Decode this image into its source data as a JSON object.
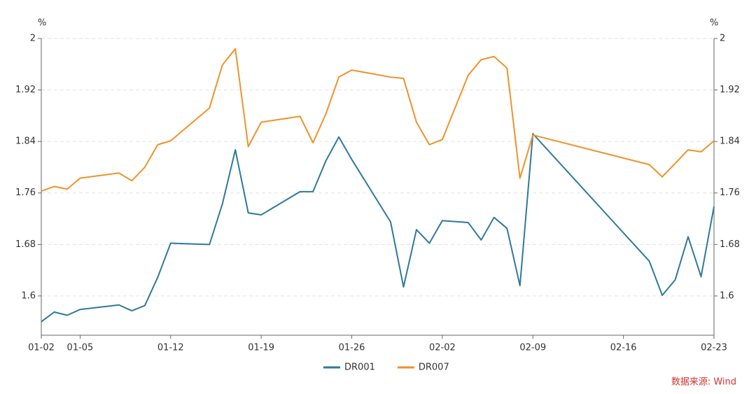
{
  "chart_data": {
    "type": "line",
    "y_label": "%",
    "y2_label": "%",
    "x": [
      "01-02",
      "01-03",
      "01-04",
      "01-05",
      "01-08",
      "01-09",
      "01-10",
      "01-11",
      "01-12",
      "01-15",
      "01-16",
      "01-17",
      "01-18",
      "01-19",
      "01-22",
      "01-23",
      "01-24",
      "01-25",
      "01-26",
      "01-29",
      "01-30",
      "01-31",
      "02-01",
      "02-02",
      "02-04",
      "02-05",
      "02-06",
      "02-07",
      "02-08",
      "02-09",
      "02-18",
      "02-19",
      "02-20",
      "02-21",
      "02-22",
      "02-23"
    ],
    "series": [
      {
        "name": "DR001",
        "color": "#2e7a9a",
        "values": [
          1.56,
          1.575,
          1.57,
          1.579,
          1.586,
          1.577,
          1.585,
          1.629,
          1.682,
          1.68,
          1.743,
          1.827,
          1.729,
          1.726,
          1.762,
          1.762,
          1.81,
          1.847,
          1.812,
          1.715,
          1.614,
          1.703,
          1.682,
          1.717,
          1.714,
          1.687,
          1.722,
          1.705,
          1.616,
          1.852,
          1.654,
          1.601,
          1.625,
          1.692,
          1.63,
          1.739
        ]
      },
      {
        "name": "DR007",
        "color": "#f0922b",
        "values": [
          1.763,
          1.77,
          1.766,
          1.783,
          1.791,
          1.779,
          1.8,
          1.835,
          1.841,
          1.892,
          1.959,
          1.984,
          1.832,
          1.87,
          1.879,
          1.838,
          1.883,
          1.94,
          1.951,
          1.94,
          1.938,
          1.87,
          1.835,
          1.843,
          1.943,
          1.967,
          1.972,
          1.954,
          1.783,
          1.85,
          1.804,
          1.785,
          1.806,
          1.827,
          1.824,
          1.841
        ]
      }
    ],
    "xticks": [
      "01-02",
      "01-05",
      "01-12",
      "01-19",
      "01-26",
      "02-02",
      "02-09",
      "02-16",
      "02-23"
    ],
    "ylim": [
      1.539,
      2
    ],
    "yticks": [
      1.6,
      1.68,
      1.76,
      1.84,
      1.92,
      2
    ],
    "y2lim": [
      1.539,
      2
    ],
    "y2ticks": [
      1.6,
      1.68,
      1.76,
      1.84,
      1.92,
      2
    ],
    "grid": true,
    "legend": "bottom",
    "source": "数据来源: Wind"
  }
}
